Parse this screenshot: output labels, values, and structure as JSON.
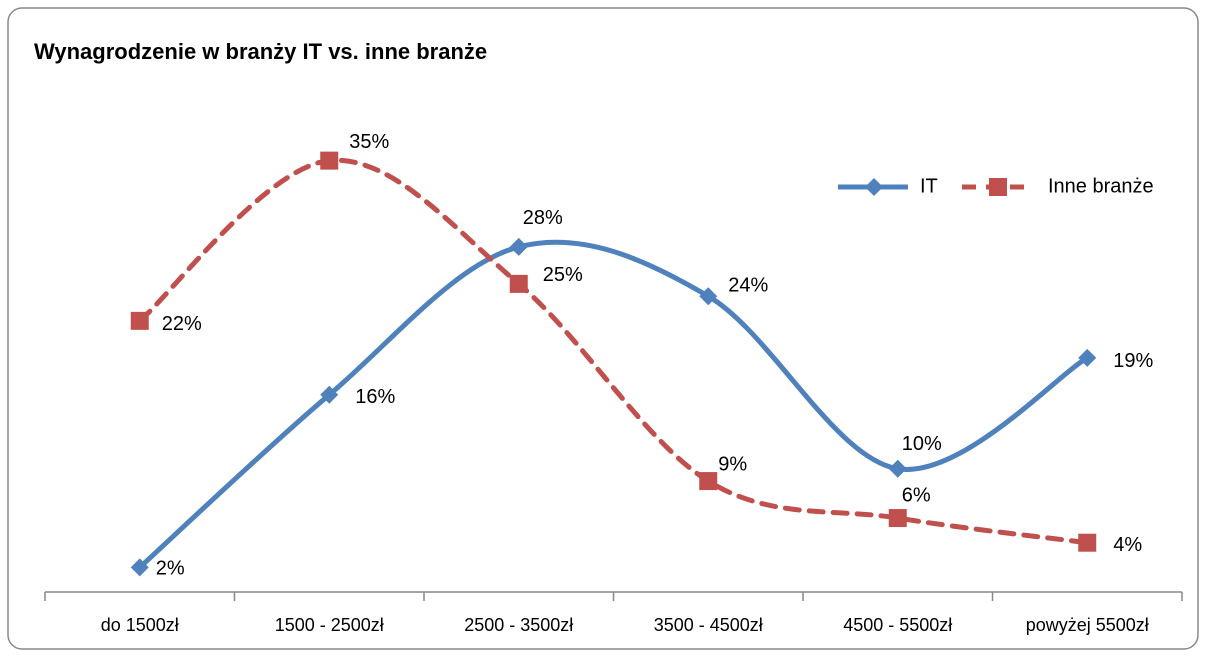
{
  "chart_data": {
    "type": "line",
    "title": "Wynagrodzenie w branży IT vs. inne branże",
    "categories": [
      "do 1500zł",
      "1500 - 2500zł",
      "2500 - 3500zł",
      "3500 - 4500zł",
      "4500 - 5500zł",
      "powyżej 5500zł"
    ],
    "series": [
      {
        "name": "IT",
        "color": "#4f81bd",
        "values": [
          2,
          16,
          28,
          24,
          10,
          19
        ],
        "value_labels": [
          "2%",
          "16%",
          "28%",
          "24%",
          "10%",
          "19%"
        ],
        "marker": "diamond",
        "dash": false
      },
      {
        "name": "Inne branże",
        "color": "#c0504d",
        "values": [
          22,
          35,
          25,
          9,
          6,
          4
        ],
        "value_labels": [
          "22%",
          "35%",
          "25%",
          "9%",
          "6%",
          "4%"
        ],
        "marker": "square",
        "dash": true
      }
    ],
    "ylim": [
      0,
      40
    ],
    "smooth": true,
    "legend": "top-right"
  }
}
